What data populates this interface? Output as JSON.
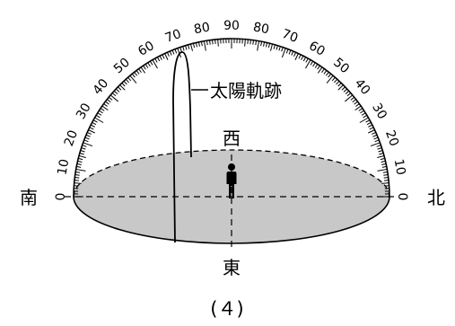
{
  "directions": {
    "south": "南",
    "north": "北",
    "west": "西",
    "east": "東"
  },
  "label_path": "太陽軌跡",
  "figure_label": "(４)",
  "scale_labels": [
    "0",
    "10",
    "20",
    "30",
    "40",
    "50",
    "60",
    "70",
    "80",
    "90",
    "80",
    "70",
    "60",
    "50",
    "40",
    "30",
    "20",
    "10",
    "0"
  ],
  "colors": {
    "ground": "#c8c8c8",
    "line": "#000000",
    "background": "#ffffff"
  }
}
